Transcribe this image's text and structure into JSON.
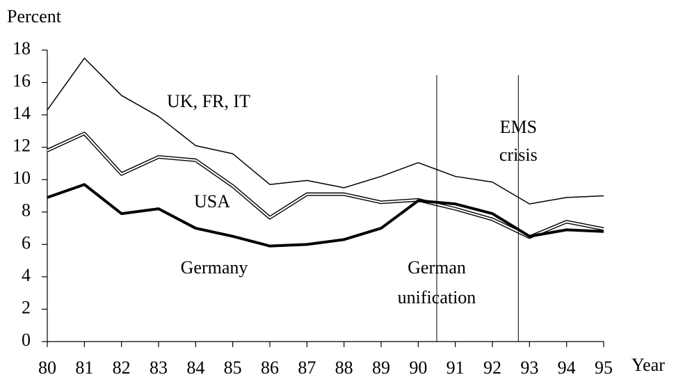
{
  "chart_data": {
    "type": "line",
    "y_axis_label": "Percent",
    "x_axis_label": "Year",
    "x": [
      80,
      81,
      82,
      83,
      84,
      85,
      86,
      87,
      88,
      89,
      90,
      91,
      92,
      93,
      94,
      95
    ],
    "xlim": [
      80,
      95
    ],
    "xticks": [
      80,
      81,
      82,
      83,
      84,
      85,
      86,
      87,
      88,
      89,
      90,
      91,
      92,
      93,
      94,
      95
    ],
    "ylim": [
      0,
      18
    ],
    "yticks": [
      0,
      2,
      4,
      6,
      8,
      10,
      12,
      14,
      16,
      18
    ],
    "series": [
      {
        "name": "UK, FR, IT",
        "color": "#000000",
        "style": "thin",
        "values": [
          14.3,
          17.5,
          15.2,
          13.9,
          12.1,
          11.6,
          9.7,
          9.95,
          9.5,
          10.2,
          11.05,
          10.2,
          9.85,
          8.5,
          8.9,
          9.0
        ]
      },
      {
        "name": "USA",
        "color": "#000000",
        "style": "double",
        "values": [
          11.8,
          12.85,
          10.35,
          11.4,
          11.2,
          9.6,
          7.65,
          9.1,
          9.1,
          8.6,
          8.75,
          8.2,
          7.55,
          6.45,
          7.4,
          6.95
        ]
      },
      {
        "name": "Germany",
        "color": "#000000",
        "style": "thick",
        "values": [
          8.9,
          9.7,
          7.9,
          8.2,
          7.0,
          6.5,
          5.9,
          6.0,
          6.3,
          7.0,
          8.7,
          8.5,
          7.9,
          6.5,
          6.9,
          6.8
        ]
      }
    ],
    "annotations": [
      {
        "x": 90.5,
        "lines": [
          "German",
          "unification"
        ]
      },
      {
        "x": 92.7,
        "lines": [
          "EMS",
          "crisis"
        ]
      }
    ]
  }
}
